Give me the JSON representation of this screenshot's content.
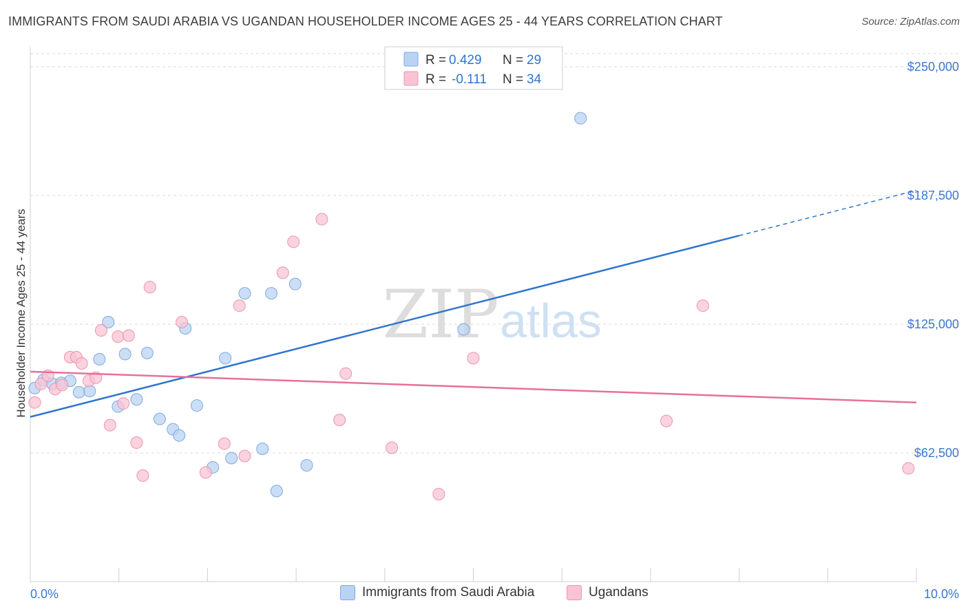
{
  "title": "IMMIGRANTS FROM SAUDI ARABIA VS UGANDAN HOUSEHOLDER INCOME AGES 25 - 44 YEARS CORRELATION CHART",
  "source": "Source: ZipAtlas.com",
  "watermark": {
    "zip": "ZIP",
    "atlas": "atlas"
  },
  "colors": {
    "blue_fill": "#b9d3f3",
    "blue_stroke": "#7ca9e0",
    "blue_line": "#2f74d0",
    "pink_fill": "#f8c4d4",
    "pink_stroke": "#ec94b0",
    "pink_line": "#e76f9a",
    "axis_label": "#3a78d0",
    "grid": "#d9d9d9"
  },
  "legend_top": [
    {
      "r_label": "R =",
      "r_value": "0.429",
      "n_label": "N =",
      "n_value": "29"
    },
    {
      "r_label": "R =",
      "r_value": "-0.111",
      "n_label": "N =",
      "n_value": "34"
    }
  ],
  "legend_bottom": [
    "Immigrants from Saudi Arabia",
    "Ugandans"
  ],
  "chart_data": {
    "type": "scatter",
    "xlabel": "",
    "ylabel": "Householder Income Ages 25 - 44 years",
    "xlim": [
      0,
      10
    ],
    "ylim": [
      0,
      250000
    ],
    "x_tick_labels": [
      "0.0%",
      "10.0%"
    ],
    "y_ticks": [
      62500,
      125000,
      187500,
      250000
    ],
    "y_tick_labels": [
      "$62,500",
      "$125,000",
      "$187,500",
      "$250,000"
    ],
    "grid": true,
    "legend_placement": "top-center",
    "series": [
      {
        "name": "Immigrants from Saudi Arabia",
        "color": "blue",
        "points": [
          [
            0.05,
            94000
          ],
          [
            0.15,
            98000
          ],
          [
            0.25,
            96000
          ],
          [
            0.35,
            96500
          ],
          [
            0.45,
            97500
          ],
          [
            0.55,
            92000
          ],
          [
            0.67,
            92500
          ],
          [
            0.78,
            108000
          ],
          [
            0.88,
            126000
          ],
          [
            0.99,
            85000
          ],
          [
            1.07,
            110500
          ],
          [
            1.2,
            88500
          ],
          [
            1.32,
            111000
          ],
          [
            1.46,
            79000
          ],
          [
            1.61,
            74000
          ],
          [
            1.68,
            71000
          ],
          [
            1.75,
            123000
          ],
          [
            1.88,
            85500
          ],
          [
            2.06,
            55500
          ],
          [
            2.2,
            108500
          ],
          [
            2.27,
            60000
          ],
          [
            2.42,
            140000
          ],
          [
            2.62,
            64500
          ],
          [
            2.72,
            140000
          ],
          [
            2.78,
            44000
          ],
          [
            2.99,
            144500
          ],
          [
            3.12,
            56500
          ],
          [
            4.89,
            122500
          ],
          [
            6.21,
            225000
          ]
        ],
        "trend": {
          "x0": 0,
          "y0": 80000,
          "x1": 8.0,
          "y1": 168000,
          "dash_to_x": 10,
          "dash_to_y": 190000
        }
      },
      {
        "name": "Ugandans",
        "color": "pink",
        "points": [
          [
            0.05,
            87000
          ],
          [
            0.12,
            96000
          ],
          [
            0.2,
            100000
          ],
          [
            0.28,
            93500
          ],
          [
            0.36,
            95500
          ],
          [
            0.45,
            109000
          ],
          [
            0.52,
            109000
          ],
          [
            0.58,
            106000
          ],
          [
            0.66,
            97500
          ],
          [
            0.74,
            99000
          ],
          [
            0.8,
            122000
          ],
          [
            0.9,
            76000
          ],
          [
            0.99,
            119000
          ],
          [
            1.05,
            86500
          ],
          [
            1.11,
            119500
          ],
          [
            1.2,
            67500
          ],
          [
            1.27,
            51500
          ],
          [
            1.35,
            143000
          ],
          [
            1.71,
            126000
          ],
          [
            1.98,
            53000
          ],
          [
            2.19,
            67000
          ],
          [
            2.36,
            134000
          ],
          [
            2.42,
            61000
          ],
          [
            2.85,
            150000
          ],
          [
            2.97,
            165000
          ],
          [
            3.29,
            176000
          ],
          [
            3.56,
            101000
          ],
          [
            3.49,
            78500
          ],
          [
            4.08,
            65000
          ],
          [
            4.61,
            42500
          ],
          [
            5.0,
            108500
          ],
          [
            7.18,
            78000
          ],
          [
            7.59,
            134000
          ],
          [
            9.91,
            55000
          ]
        ],
        "trend": {
          "x0": 0,
          "y0": 102000,
          "x1": 10,
          "y1": 87000
        }
      }
    ]
  }
}
